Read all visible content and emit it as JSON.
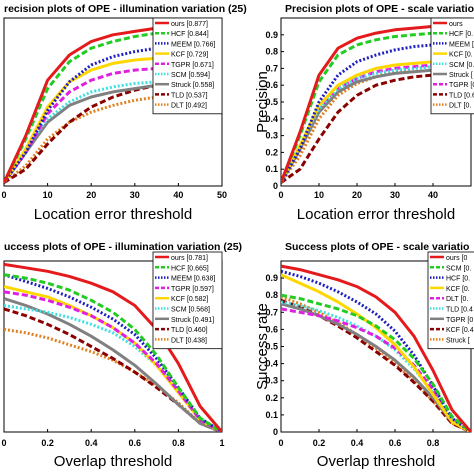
{
  "chart_data": [
    {
      "type": "line",
      "title": "recision plots of OPE - illumination variation (25)",
      "xlabel": "Location error threshold",
      "ylabel": "",
      "xlim": [
        0,
        50
      ],
      "ylim": [
        0,
        1
      ],
      "x_ticks": [
        "0",
        "10",
        "20",
        "30",
        "40",
        "50"
      ],
      "y_ticks": [],
      "legend_position": "top-right",
      "x": [
        0,
        5,
        10,
        15,
        20,
        25,
        30,
        35,
        40,
        45,
        50
      ],
      "series": [
        {
          "name": "ours [0.877]",
          "color": "#e41a1c",
          "dash": "solid",
          "values": [
            0.02,
            0.3,
            0.63,
            0.78,
            0.86,
            0.9,
            0.92,
            0.94,
            0.95,
            0.96,
            0.965
          ]
        },
        {
          "name": "HCF [0.844]",
          "color": "#22cc22",
          "dash": "dash",
          "values": [
            0.02,
            0.28,
            0.58,
            0.74,
            0.82,
            0.86,
            0.89,
            0.91,
            0.92,
            0.93,
            0.935
          ]
        },
        {
          "name": "MEEM [0.766]",
          "color": "#1f1fbf",
          "dash": "dot",
          "values": [
            0.02,
            0.2,
            0.45,
            0.62,
            0.72,
            0.77,
            0.8,
            0.82,
            0.84,
            0.85,
            0.86
          ]
        },
        {
          "name": "KCF [0.729]",
          "color": "#ffd700",
          "dash": "solid",
          "values": [
            0.02,
            0.22,
            0.47,
            0.62,
            0.69,
            0.73,
            0.75,
            0.76,
            0.77,
            0.78,
            0.78
          ]
        },
        {
          "name": "TGPR [0.671]",
          "color": "#e020e0",
          "dash": "dash",
          "values": [
            0.02,
            0.2,
            0.43,
            0.56,
            0.63,
            0.67,
            0.69,
            0.7,
            0.71,
            0.72,
            0.72
          ]
        },
        {
          "name": "SCM [0.594]",
          "color": "#40e0e0",
          "dash": "dot",
          "values": [
            0.02,
            0.22,
            0.4,
            0.5,
            0.56,
            0.59,
            0.61,
            0.62,
            0.63,
            0.64,
            0.64
          ]
        },
        {
          "name": "Struck [0.558]",
          "color": "#808080",
          "dash": "solid",
          "values": [
            0.02,
            0.2,
            0.38,
            0.48,
            0.53,
            0.56,
            0.58,
            0.6,
            0.61,
            0.62,
            0.62
          ]
        },
        {
          "name": "TLD [0.537]",
          "color": "#8b0000",
          "dash": "dash",
          "values": [
            0.02,
            0.1,
            0.25,
            0.38,
            0.47,
            0.53,
            0.57,
            0.6,
            0.62,
            0.63,
            0.64
          ]
        },
        {
          "name": "DLT [0.492]",
          "color": "#e08020",
          "dash": "dot",
          "values": [
            0.02,
            0.12,
            0.28,
            0.38,
            0.44,
            0.48,
            0.51,
            0.53,
            0.55,
            0.56,
            0.57
          ]
        }
      ]
    },
    {
      "type": "line",
      "title": "Precision plots of OPE - scale variatio",
      "xlabel": "Location error threshold",
      "ylabel": "Precision",
      "xlim": [
        0,
        50
      ],
      "ylim": [
        0,
        1
      ],
      "x_ticks": [
        "0",
        "10",
        "20",
        "30",
        "40"
      ],
      "y_ticks": [
        "0",
        "0.1",
        "0.2",
        "0.3",
        "0.4",
        "0.5",
        "0.6",
        "0.7",
        "0.8",
        "0.9"
      ],
      "legend_position": "top-right",
      "x": [
        0,
        5,
        10,
        15,
        20,
        25,
        30,
        35,
        40,
        45,
        50
      ],
      "series": [
        {
          "name": "ours",
          "color": "#e41a1c",
          "dash": "solid",
          "values": [
            0.02,
            0.32,
            0.66,
            0.82,
            0.88,
            0.91,
            0.93,
            0.94,
            0.95,
            0.96,
            0.96
          ]
        },
        {
          "name": "HCF [0.",
          "color": "#22cc22",
          "dash": "dash",
          "values": [
            0.02,
            0.3,
            0.62,
            0.78,
            0.84,
            0.87,
            0.89,
            0.9,
            0.91,
            0.92,
            0.92
          ]
        },
        {
          "name": "MEEM [",
          "color": "#1f1fbf",
          "dash": "dot",
          "values": [
            0.02,
            0.22,
            0.5,
            0.66,
            0.74,
            0.78,
            0.81,
            0.83,
            0.84,
            0.85,
            0.86
          ]
        },
        {
          "name": "KCF [0.",
          "color": "#ffd700",
          "dash": "solid",
          "values": [
            0.02,
            0.24,
            0.48,
            0.6,
            0.66,
            0.7,
            0.72,
            0.73,
            0.74,
            0.75,
            0.75
          ]
        },
        {
          "name": "SCM [0.",
          "color": "#40e0e0",
          "dash": "dot",
          "values": [
            0.02,
            0.24,
            0.46,
            0.58,
            0.64,
            0.67,
            0.69,
            0.7,
            0.71,
            0.72,
            0.72
          ]
        },
        {
          "name": "Struck [",
          "color": "#808080",
          "dash": "solid",
          "values": [
            0.02,
            0.22,
            0.44,
            0.56,
            0.62,
            0.65,
            0.67,
            0.68,
            0.69,
            0.7,
            0.7
          ]
        },
        {
          "name": "TGPR [0",
          "color": "#e020e0",
          "dash": "dash",
          "values": [
            0.02,
            0.22,
            0.45,
            0.58,
            0.64,
            0.68,
            0.7,
            0.71,
            0.72,
            0.73,
            0.73
          ]
        },
        {
          "name": "TLD [0.6",
          "color": "#8b0000",
          "dash": "dash",
          "values": [
            0.02,
            0.1,
            0.28,
            0.44,
            0.54,
            0.6,
            0.63,
            0.65,
            0.66,
            0.67,
            0.67
          ]
        },
        {
          "name": "DLT [0.",
          "color": "#e08020",
          "dash": "dot",
          "values": [
            0.02,
            0.18,
            0.4,
            0.54,
            0.61,
            0.65,
            0.68,
            0.7,
            0.71,
            0.72,
            0.73
          ]
        }
      ]
    },
    {
      "type": "line",
      "title": "uccess plots of OPE - illumination variation (25)",
      "xlabel": "Overlap threshold",
      "ylabel": "",
      "xlim": [
        0,
        1
      ],
      "ylim": [
        0,
        1
      ],
      "x_ticks": [
        "0",
        "0.2",
        "0.4",
        "0.6",
        "0.8",
        "1"
      ],
      "y_ticks": [],
      "legend_position": "top-right",
      "x": [
        0,
        0.1,
        0.2,
        0.3,
        0.4,
        0.5,
        0.6,
        0.7,
        0.8,
        0.9,
        1.0
      ],
      "series": [
        {
          "name": "ours [0.781]",
          "color": "#e41a1c",
          "dash": "solid",
          "values": [
            0.98,
            0.96,
            0.94,
            0.91,
            0.87,
            0.82,
            0.74,
            0.6,
            0.4,
            0.15,
            0.0
          ]
        },
        {
          "name": "HCF [0.665]",
          "color": "#22cc22",
          "dash": "dash",
          "values": [
            0.92,
            0.9,
            0.87,
            0.83,
            0.77,
            0.7,
            0.6,
            0.45,
            0.26,
            0.08,
            0.0
          ]
        },
        {
          "name": "MEEM [0.638]",
          "color": "#1f1fbf",
          "dash": "dot",
          "values": [
            0.92,
            0.88,
            0.84,
            0.79,
            0.73,
            0.66,
            0.57,
            0.43,
            0.26,
            0.08,
            0.0
          ]
        },
        {
          "name": "TGPR [0.597]",
          "color": "#e020e0",
          "dash": "dash",
          "values": [
            0.82,
            0.8,
            0.77,
            0.73,
            0.68,
            0.61,
            0.52,
            0.4,
            0.24,
            0.07,
            0.0
          ]
        },
        {
          "name": "KCF [0.582]",
          "color": "#ffd700",
          "dash": "solid",
          "values": [
            0.85,
            0.82,
            0.79,
            0.74,
            0.68,
            0.61,
            0.52,
            0.39,
            0.23,
            0.07,
            0.0
          ]
        },
        {
          "name": "SCM [0.568]",
          "color": "#40e0e0",
          "dash": "dot",
          "values": [
            0.74,
            0.72,
            0.7,
            0.67,
            0.63,
            0.58,
            0.5,
            0.39,
            0.25,
            0.08,
            0.0
          ]
        },
        {
          "name": "Struck [0.491]",
          "color": "#808080",
          "dash": "solid",
          "values": [
            0.78,
            0.74,
            0.69,
            0.63,
            0.56,
            0.48,
            0.39,
            0.28,
            0.16,
            0.05,
            0.0
          ]
        },
        {
          "name": "TLD [0.460]",
          "color": "#8b0000",
          "dash": "dash",
          "values": [
            0.72,
            0.68,
            0.63,
            0.57,
            0.5,
            0.43,
            0.35,
            0.26,
            0.16,
            0.05,
            0.0
          ]
        },
        {
          "name": "DLT [0.438]",
          "color": "#e08020",
          "dash": "dot",
          "values": [
            0.6,
            0.58,
            0.55,
            0.51,
            0.47,
            0.42,
            0.35,
            0.27,
            0.17,
            0.05,
            0.0
          ]
        }
      ]
    },
    {
      "type": "line",
      "title": "Success plots of OPE - scale variatio",
      "xlabel": "Overlap threshold",
      "ylabel": "Success rate",
      "xlim": [
        0,
        1
      ],
      "ylim": [
        0,
        1
      ],
      "x_ticks": [
        "0",
        "0.2",
        "0.4",
        "0.6",
        "0.8"
      ],
      "y_ticks": [
        "0",
        "0.1",
        "0.2",
        "0.3",
        "0.4",
        "0.5",
        "0.6",
        "0.7",
        "0.8",
        "0.9"
      ],
      "legend_position": "top-right",
      "x": [
        0,
        0.1,
        0.2,
        0.3,
        0.4,
        0.5,
        0.6,
        0.7,
        0.8,
        0.9,
        1.0
      ],
      "series": [
        {
          "name": "ours [0",
          "color": "#e41a1c",
          "dash": "solid",
          "values": [
            0.97,
            0.95,
            0.92,
            0.89,
            0.85,
            0.79,
            0.7,
            0.56,
            0.36,
            0.13,
            0.0
          ]
        },
        {
          "name": "SCM [0.",
          "color": "#22cc22",
          "dash": "dash",
          "values": [
            0.8,
            0.78,
            0.75,
            0.72,
            0.68,
            0.62,
            0.54,
            0.43,
            0.28,
            0.09,
            0.0
          ]
        },
        {
          "name": "HCF [0.",
          "color": "#1f1fbf",
          "dash": "dot",
          "values": [
            0.94,
            0.91,
            0.87,
            0.82,
            0.76,
            0.69,
            0.59,
            0.45,
            0.27,
            0.08,
            0.0
          ]
        },
        {
          "name": "KCF [0.",
          "color": "#ffd700",
          "dash": "solid",
          "values": [
            0.92,
            0.87,
            0.82,
            0.76,
            0.69,
            0.61,
            0.51,
            0.38,
            0.22,
            0.06,
            0.0
          ]
        },
        {
          "name": "DLT [0.",
          "color": "#e020e0",
          "dash": "dash",
          "values": [
            0.72,
            0.7,
            0.68,
            0.65,
            0.61,
            0.56,
            0.49,
            0.39,
            0.25,
            0.08,
            0.0
          ]
        },
        {
          "name": "TLD [0.4",
          "color": "#40e0e0",
          "dash": "dot",
          "values": [
            0.76,
            0.74,
            0.71,
            0.67,
            0.62,
            0.56,
            0.48,
            0.37,
            0.23,
            0.07,
            0.0
          ]
        },
        {
          "name": "TGPR [0",
          "color": "#808080",
          "dash": "solid",
          "values": [
            0.75,
            0.72,
            0.68,
            0.63,
            0.57,
            0.5,
            0.42,
            0.32,
            0.2,
            0.06,
            0.0
          ]
        },
        {
          "name": "KCF [0.4",
          "color": "#8b0000",
          "dash": "dash",
          "values": [
            0.77,
            0.73,
            0.68,
            0.62,
            0.55,
            0.47,
            0.39,
            0.29,
            0.18,
            0.05,
            0.0
          ]
        },
        {
          "name": "Struck [",
          "color": "#e08020",
          "dash": "dot",
          "values": [
            0.79,
            0.75,
            0.7,
            0.64,
            0.57,
            0.49,
            0.4,
            0.3,
            0.18,
            0.05,
            0.0
          ]
        }
      ]
    }
  ]
}
